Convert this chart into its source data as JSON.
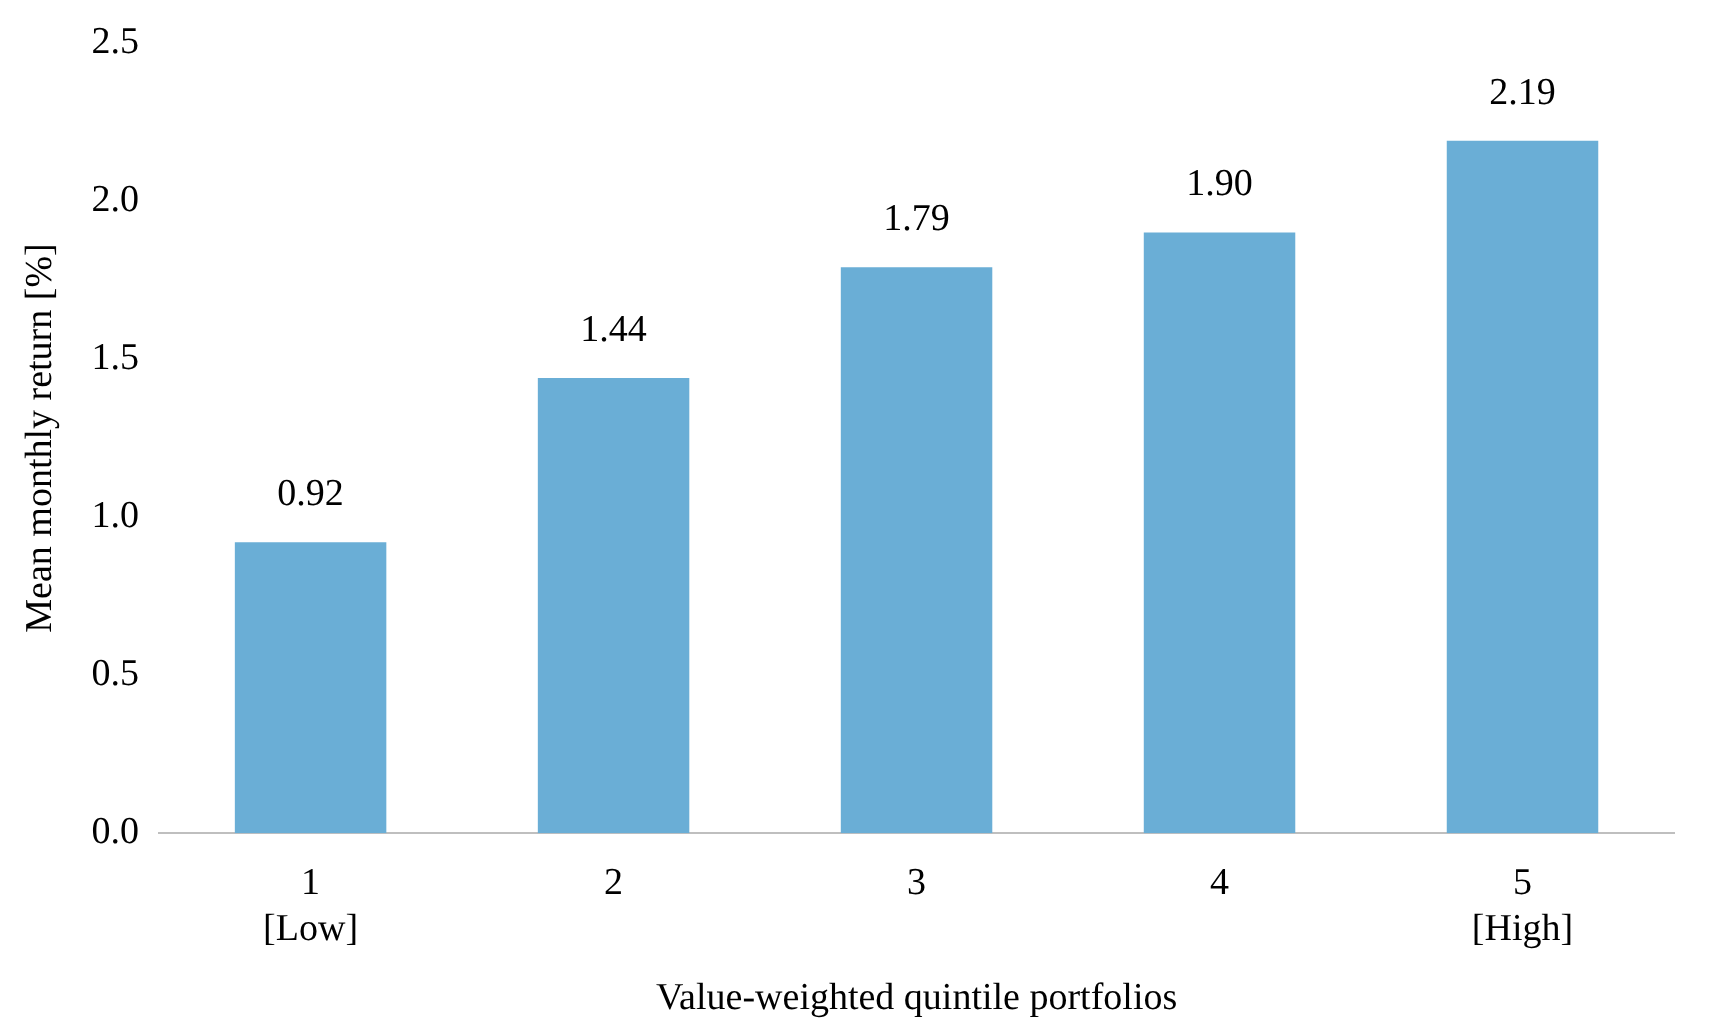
{
  "chart_data": {
    "type": "bar",
    "xlabel": "Value-weighted quintile portfolios",
    "ylabel": "Mean monthly return [%]",
    "categories": [
      "1\n[Low]",
      "2",
      "3",
      "4",
      "5\n[High]"
    ],
    "values": [
      0.92,
      1.44,
      1.79,
      1.9,
      2.19
    ],
    "value_labels": [
      "0.92",
      "1.44",
      "1.79",
      "1.90",
      "2.19"
    ],
    "color": "#6aaed6",
    "ylim": [
      0,
      2.5
    ],
    "yticks": [
      {
        "value": 0,
        "label": "0.0"
      },
      {
        "value": 0.5,
        "label": "0.5"
      },
      {
        "value": 1,
        "label": "1.0"
      },
      {
        "value": 1.5,
        "label": "1.5"
      },
      {
        "value": 2,
        "label": "2.0"
      },
      {
        "value": 2.5,
        "label": "2.5"
      }
    ],
    "grid": false,
    "legend": false
  }
}
